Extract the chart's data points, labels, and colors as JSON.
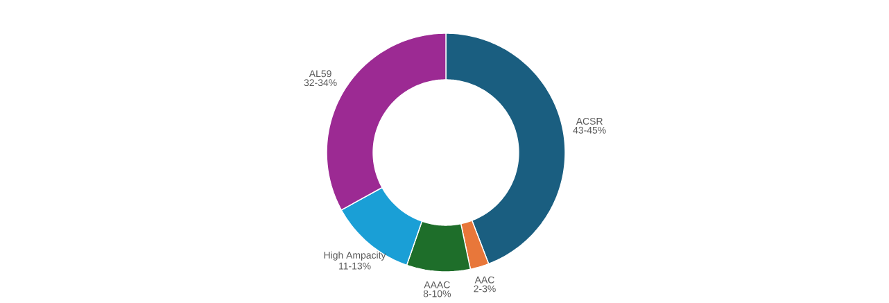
{
  "chart_data": {
    "type": "donut",
    "categories": [
      "ACSR",
      "AAC",
      "AAAC",
      "High Ampacity",
      "AL59"
    ],
    "values": [
      43.5,
      2.5,
      8.5,
      11.5,
      32.5
    ],
    "colors": [
      "#1a5e80",
      "#e8773a",
      "#1e6e2a",
      "#1a9fd6",
      "#9c2a93"
    ],
    "value_labels": [
      "43-45%",
      "2-3%",
      "8-10%",
      "11-13%",
      "32-34%"
    ]
  }
}
